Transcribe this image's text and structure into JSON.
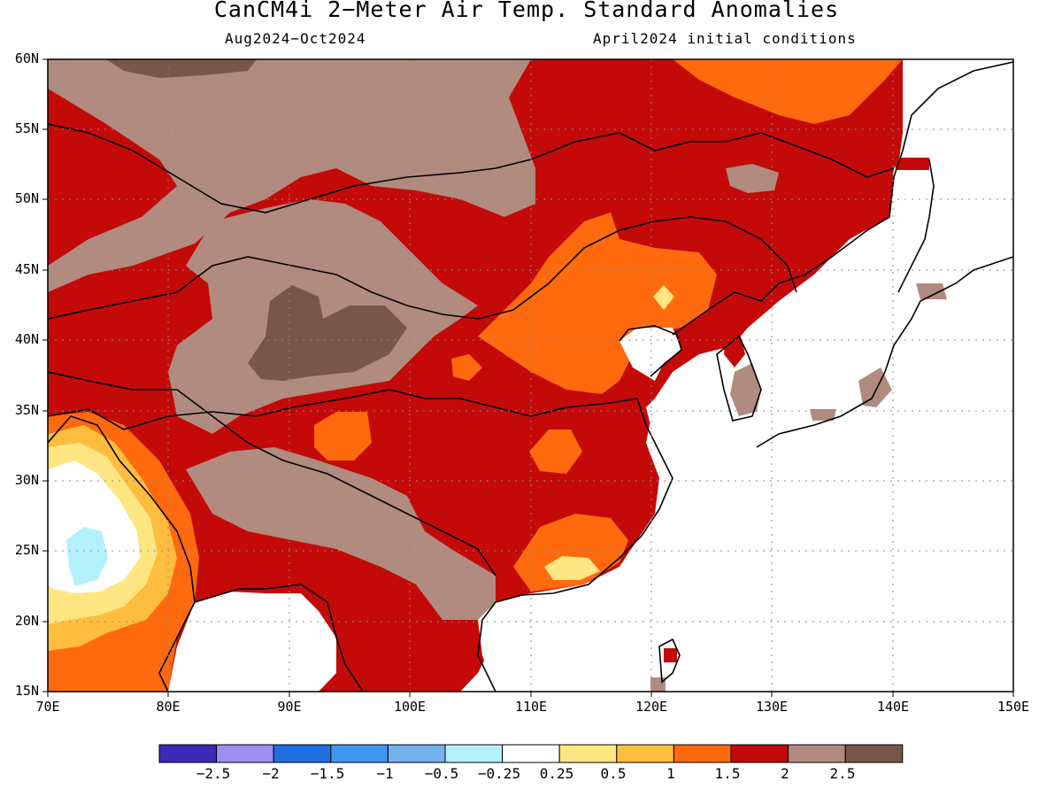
{
  "title": "CanCM4i 2−Meter Air Temp. Standard Anomalies",
  "subtitle_left": "Aug2024−Oct2024",
  "subtitle_right": "April2024 initial conditions",
  "lat_labels": [
    "60N",
    "55N",
    "50N",
    "45N",
    "40N",
    "35N",
    "30N",
    "25N",
    "20N",
    "15N"
  ],
  "lon_labels": [
    "70E",
    "80E",
    "90E",
    "100E",
    "110E",
    "120E",
    "130E",
    "140E",
    "150E"
  ],
  "colorbar": {
    "colors": [
      "#3b2ab5",
      "#9e8ef0",
      "#1f6fe0",
      "#3f96f0",
      "#72b2f0",
      "#b4f0fa",
      "#ffffff",
      "#ffe682",
      "#ffbd3d",
      "#ff6a0e",
      "#c30a09",
      "#b18b7f",
      "#78564a"
    ],
    "labels": [
      "−2.5",
      "−2",
      "−1.5",
      "−1",
      "−0.5",
      "−0.25",
      "0.25",
      "0.5",
      "1",
      "1.5",
      "2",
      "2.5"
    ]
  }
}
